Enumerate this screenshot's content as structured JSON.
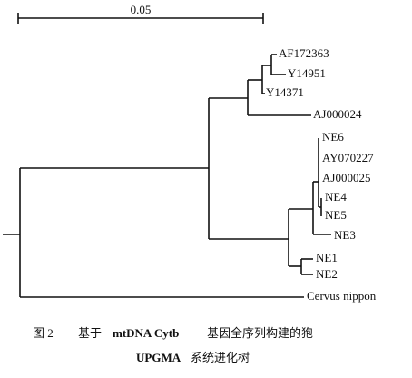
{
  "scale_bar": {
    "label": "0.05"
  },
  "leaves": [
    "AF172363",
    "Y14951",
    "Y14371",
    "AJ000024",
    "NE6",
    "AY070227",
    "AJ000025",
    "NE4",
    "NE5",
    "NE3",
    "NE1",
    "NE2",
    "Cervus nippon"
  ],
  "caption": {
    "line1": [
      "图 2",
      "基于",
      "mtDNA Cytb",
      "基因全序列构建的狍"
    ],
    "line2": [
      "UPGMA",
      "系统进化树"
    ]
  }
}
